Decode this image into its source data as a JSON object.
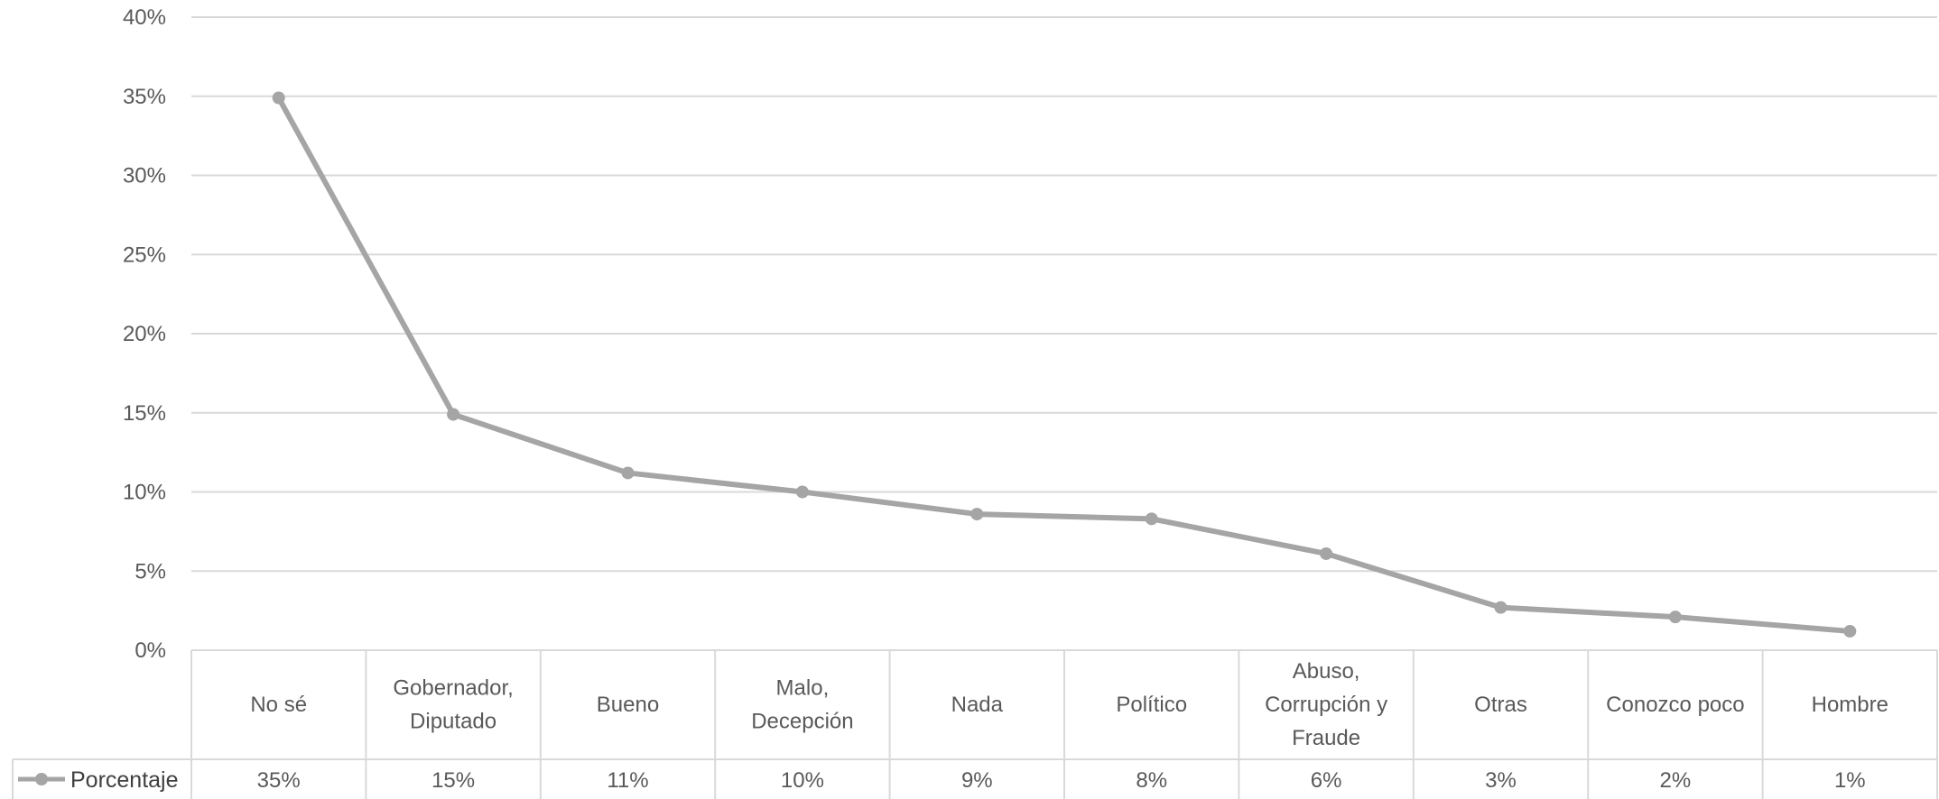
{
  "chart_data": {
    "type": "line",
    "categories": [
      [
        "No sé"
      ],
      [
        "Gobernador,",
        "Diputado"
      ],
      [
        "Bueno"
      ],
      [
        "Malo,",
        "Decepción"
      ],
      [
        "Nada"
      ],
      [
        "Político"
      ],
      [
        "Abuso,",
        "Corrupción y",
        "Fraude"
      ],
      [
        "Otras"
      ],
      [
        "Conozco poco"
      ],
      [
        "Hombre"
      ]
    ],
    "series": [
      {
        "name": "Porcentaje",
        "values": [
          0.349,
          0.149,
          0.112,
          0.1,
          0.086,
          0.083,
          0.061,
          0.027,
          0.021,
          0.012
        ],
        "table_labels": [
          "35%",
          "15%",
          "11%",
          "10%",
          "9%",
          "8%",
          "6%",
          "3%",
          "2%",
          "1%"
        ],
        "color": "#a5a5a5"
      }
    ],
    "y_ticks": [
      "0%",
      "5%",
      "10%",
      "15%",
      "20%",
      "25%",
      "30%",
      "35%",
      "40%"
    ],
    "ylim": [
      0,
      0.4
    ],
    "grid": true,
    "legend": "data-table-left",
    "gridline_color": "#d9d9d9"
  }
}
